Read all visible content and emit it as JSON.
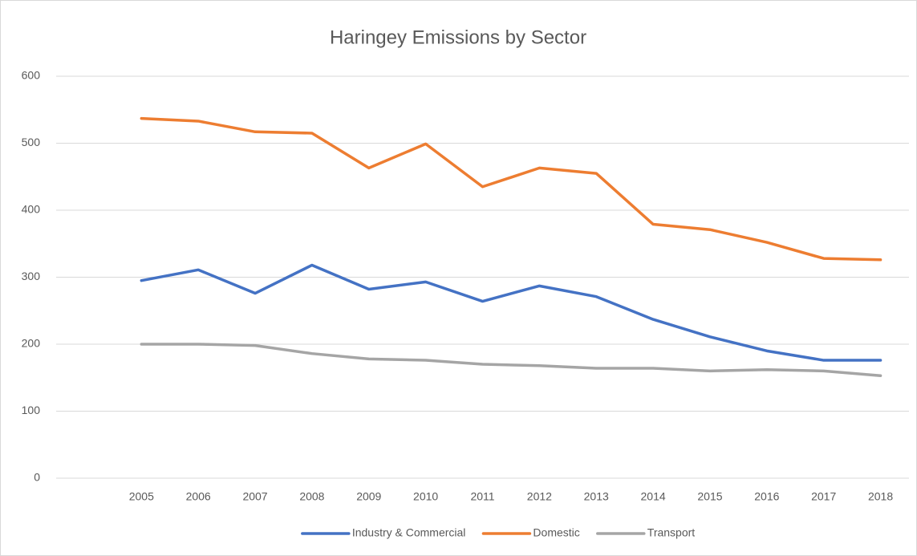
{
  "chart_data": {
    "type": "line",
    "title": "Haringey Emissions by Sector",
    "categories": [
      null,
      "2005",
      "2006",
      "2007",
      "2008",
      "2009",
      "2010",
      "2011",
      "2012",
      "2013",
      "2014",
      "2015",
      "2016",
      "2017",
      "2018"
    ],
    "series": [
      {
        "name": "Industry & Commercial",
        "color": "#4472c4",
        "values": [
          null,
          295,
          311,
          276,
          318,
          282,
          293,
          264,
          287,
          271,
          237,
          211,
          190,
          176,
          176
        ]
      },
      {
        "name": "Domestic",
        "color": "#ed7d31",
        "values": [
          null,
          537,
          533,
          517,
          515,
          463,
          499,
          435,
          463,
          455,
          379,
          371,
          352,
          328,
          326
        ]
      },
      {
        "name": "Transport",
        "color": "#a5a5a5",
        "values": [
          null,
          200,
          200,
          198,
          186,
          178,
          176,
          170,
          168,
          164,
          164,
          160,
          162,
          160,
          153
        ]
      }
    ],
    "ylim": [
      0,
      600
    ],
    "yticks": [
      0,
      100,
      200,
      300,
      400,
      500,
      600
    ],
    "grid": true,
    "legend": "bottom"
  }
}
